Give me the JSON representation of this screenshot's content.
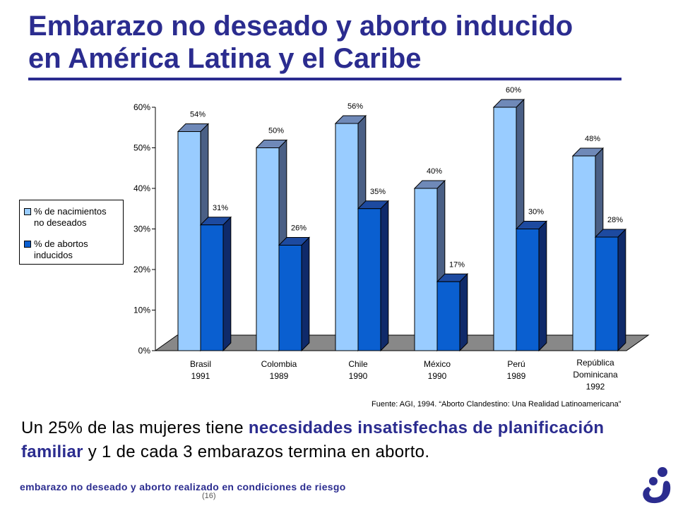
{
  "slide": {
    "title_line1": "Embarazo no deseado y aborto inducido",
    "title_line2": "en América Latina y el Caribe",
    "source": "Fuente: AGI, 1994. “Aborto Clandestino: Una Realidad Latinoamericana”",
    "summary": {
      "part1": "Un 25% de las mujeres tiene ",
      "highlight1": "necesidades insatisfechas de planificación familiar",
      "part2": " y 1 de cada 3 embarazos termina en aborto."
    },
    "footer": "embarazo no deseado y aborto realizado en condiciones de riesgo",
    "page_number": "(16)",
    "colors": {
      "brand": "#2b2c8f",
      "series1": "#99ccff",
      "series2": "#0a5fd0"
    }
  },
  "chart_data": {
    "type": "bar",
    "categories": [
      [
        "Brasil",
        "1991"
      ],
      [
        "Colombia",
        "1989"
      ],
      [
        "Chile",
        "1990"
      ],
      [
        "México",
        "1990"
      ],
      [
        "Perú",
        "1989"
      ],
      [
        "República",
        "Dominicana",
        "1992"
      ]
    ],
    "series": [
      {
        "name": "% de nacimientos no deseados",
        "values": [
          54,
          50,
          56,
          40,
          60,
          48
        ],
        "color": "#99ccff"
      },
      {
        "name": "% de abortos inducidos",
        "values": [
          31,
          26,
          35,
          17,
          30,
          28
        ],
        "color": "#0a5fd0"
      }
    ],
    "value_labels": [
      [
        "54%",
        "50%",
        "56%",
        "40%",
        "60%",
        "48%"
      ],
      [
        "31%",
        "26%",
        "35%",
        "17%",
        "30%",
        "28%"
      ]
    ],
    "yticks": [
      "0%",
      "10%",
      "20%",
      "30%",
      "40%",
      "50%",
      "60%"
    ],
    "ylim": [
      0,
      60
    ],
    "legend_placement": "left",
    "legend_lines": [
      [
        "% de nacimientos",
        "no deseados"
      ],
      [
        "% de abortos",
        "inducidos"
      ]
    ],
    "style": "3d-clustered-bar",
    "grid": false
  }
}
